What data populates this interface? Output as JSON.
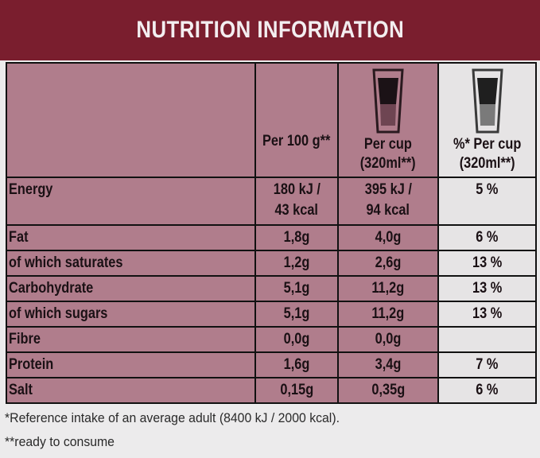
{
  "header": {
    "title": "NUTRITION INFORMATION"
  },
  "columns": {
    "per100": "Per 100 g**",
    "percup_line1": "Per cup",
    "percup_line2": "(320ml**)",
    "pctcup_line1": "%* Per cup",
    "pctcup_line2": "(320ml**)",
    "icons": [
      "cup-icon",
      "cup-icon"
    ]
  },
  "rows": [
    {
      "label": "Energy",
      "per100": [
        "180 kJ /",
        "43 kcal"
      ],
      "percup": [
        "395 kJ /",
        "94 kcal"
      ],
      "pct": "5 %"
    },
    {
      "label": "Fat",
      "per100": "1,8g",
      "percup": "4,0g",
      "pct": "6 %"
    },
    {
      "label": "of which saturates",
      "per100": "1,2g",
      "percup": "2,6g",
      "pct": "13 %"
    },
    {
      "label": "Carbohydrate",
      "per100": "5,1g",
      "percup": "11,2g",
      "pct": "13 %"
    },
    {
      "label": "of which sugars",
      "per100": "5,1g",
      "percup": "11,2g",
      "pct": "13 %"
    },
    {
      "label": "Fibre",
      "per100": "0,0g",
      "percup": "0,0g",
      "pct": ""
    },
    {
      "label": "Protein",
      "per100": "1,6g",
      "percup": "3,4g",
      "pct": "7 %"
    },
    {
      "label": "Salt",
      "per100": "0,15g",
      "percup": "0,35g",
      "pct": "6 %"
    }
  ],
  "footnotes": {
    "reference": "*Reference intake of an average adult (8400 kJ / 2000 kcal).",
    "ready": "**ready to consume"
  },
  "colors": {
    "header": "#7a1e2e",
    "cell": "#b07d8c",
    "pct_cell": "#e6e4e5",
    "border": "#111111"
  }
}
